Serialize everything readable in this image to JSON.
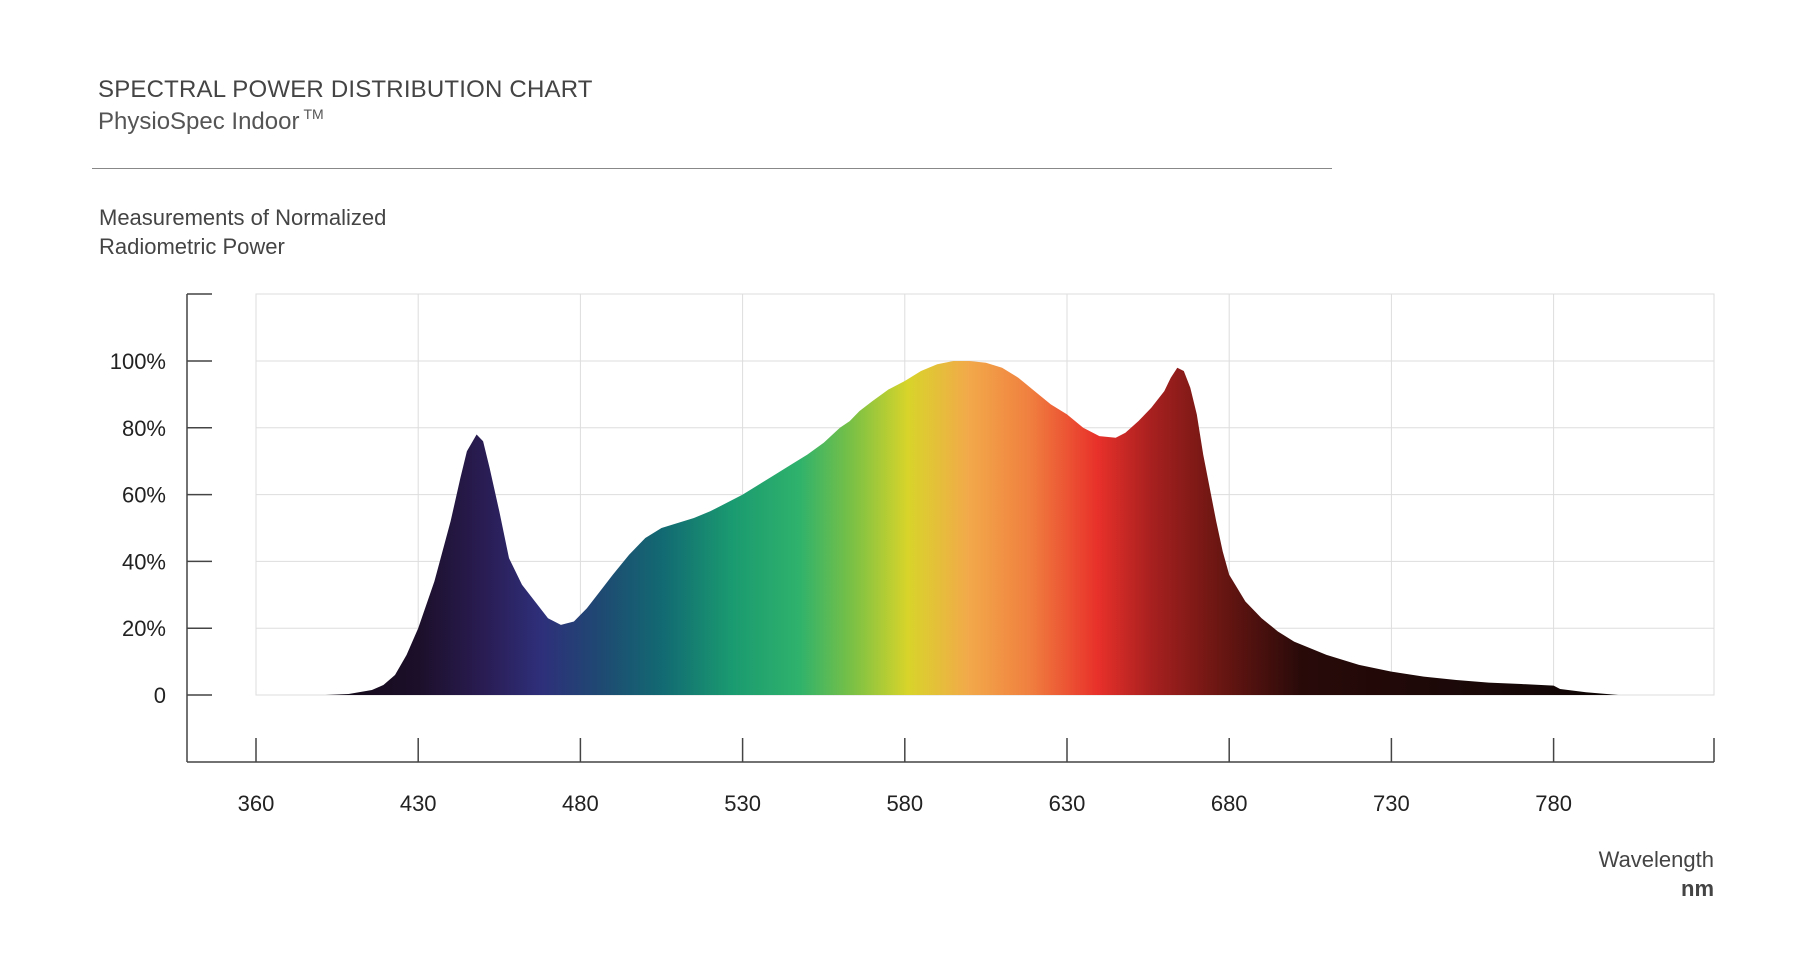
{
  "header": {
    "title": "SPECTRAL POWER DISTRIBUTION CHART",
    "product": "PhysioSpec Indoor",
    "trademark": "TM"
  },
  "axis_text": {
    "ylabel_line1": "Measurements of Normalized",
    "ylabel_line2": "Radiometric Power",
    "xlabel": "Wavelength",
    "xunit": "nm"
  },
  "chart_data": {
    "type": "area",
    "title": "SPECTRAL POWER DISTRIBUTION CHART",
    "subtitle": "PhysioSpec Indoor TM",
    "xlabel": "Wavelength nm",
    "ylabel": "Measurements of Normalized Radiometric Power",
    "x_ticks": [
      "360",
      "430",
      "480",
      "530",
      "580",
      "630",
      "680",
      "730",
      "780"
    ],
    "y_ticks": [
      "0",
      "20%",
      "40%",
      "60%",
      "80%",
      "100%"
    ],
    "ylim": [
      0,
      100
    ],
    "grid": true,
    "fill": "spectral gradient",
    "x": [
      380,
      390,
      400,
      410,
      415,
      420,
      425,
      430,
      435,
      440,
      443,
      445,
      448,
      450,
      452,
      455,
      458,
      462,
      466,
      470,
      474,
      478,
      482,
      486,
      490,
      495,
      500,
      505,
      510,
      515,
      520,
      525,
      530,
      535,
      540,
      545,
      550,
      555,
      560,
      563,
      566,
      570,
      575,
      580,
      585,
      590,
      595,
      600,
      605,
      610,
      615,
      620,
      625,
      630,
      635,
      640,
      645,
      648,
      652,
      656,
      660,
      662,
      664,
      666,
      668,
      670,
      672,
      674,
      676,
      678,
      680,
      685,
      690,
      695,
      700,
      710,
      720,
      730,
      740,
      750,
      760,
      770,
      780,
      782,
      790,
      800
    ],
    "values": [
      0,
      0,
      0.3,
      1.5,
      3,
      6,
      12,
      20,
      34,
      52,
      65,
      73,
      78,
      76,
      68,
      55,
      41,
      33,
      28,
      23,
      21,
      22,
      26,
      31,
      36,
      42,
      47,
      50,
      51.5,
      53,
      55,
      57.5,
      60,
      63,
      66,
      69,
      72,
      75.5,
      80,
      82,
      85,
      88,
      91.5,
      94,
      97,
      99,
      100,
      100,
      99.5,
      98,
      95,
      91,
      87,
      84,
      80,
      77.5,
      77,
      78.5,
      82,
      86,
      91,
      95,
      98,
      97,
      92,
      84,
      72,
      62,
      52,
      43,
      36,
      28,
      23,
      19,
      16,
      12,
      9,
      7,
      5.5,
      4.5,
      3.7,
      3.3,
      2.8,
      1.8,
      0.8,
      0
    ]
  }
}
